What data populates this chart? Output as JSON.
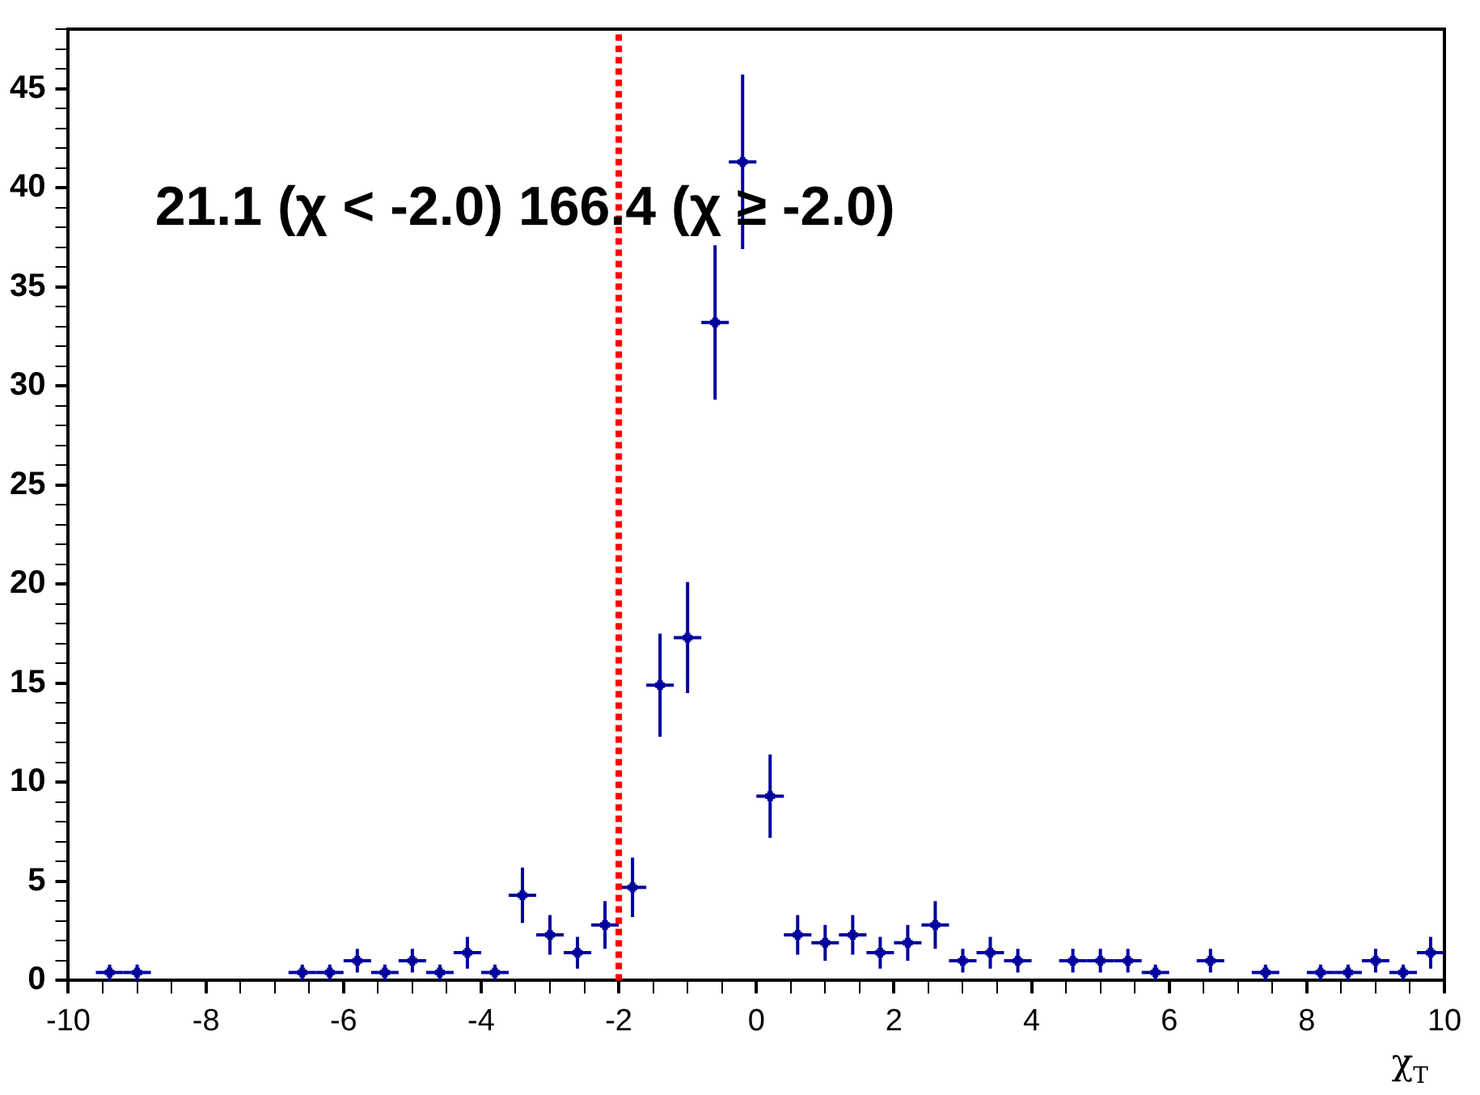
{
  "chart_data": {
    "type": "scatter",
    "xlabel": "χ$_{T}$",
    "marker": "cross",
    "annotations": [
      "21.1 (χ < -2.0) 166.4 (χ ≥ -2.0)"
    ],
    "xlim": [
      -10,
      10
    ],
    "xticks": [
      -10,
      {
        "value": -9.5,
        "label": null
      },
      {
        "value": -9,
        "label": null
      },
      {
        "value": -8.5,
        "label": null
      },
      -8,
      {
        "value": -7.5,
        "label": null
      },
      {
        "value": -7,
        "label": null
      },
      {
        "value": -6.5,
        "label": null
      },
      -6,
      {
        "value": -5.5,
        "label": null
      },
      {
        "value": -5,
        "label": null
      },
      {
        "value": -4.5,
        "label": null
      },
      -4,
      {
        "value": -3.5,
        "label": null
      },
      {
        "value": -3,
        "label": null
      },
      {
        "value": -2.5,
        "label": null
      },
      -2,
      {
        "value": -1.5,
        "label": null
      },
      {
        "value": -1,
        "label": null
      },
      {
        "value": -0.5,
        "label": null
      },
      0,
      {
        "value": 0.5,
        "label": null
      },
      {
        "value": 1,
        "label": null
      },
      {
        "value": 1.5,
        "label": null
      },
      2,
      {
        "value": 2.5,
        "label": null
      },
      {
        "value": 3,
        "label": null
      },
      {
        "value": 3.5,
        "label": null
      },
      4,
      {
        "value": 4.5,
        "label": null
      },
      {
        "value": 5,
        "label": null
      },
      {
        "value": 5.5,
        "label": null
      },
      6,
      {
        "value": 6.5,
        "label": null
      },
      {
        "value": 7,
        "label": null
      },
      {
        "value": 7.5,
        "label": null
      },
      8,
      {
        "value": 8.5,
        "label": null
      },
      {
        "value": 9,
        "label": null
      },
      {
        "value": 9.5,
        "label": null
      },
      10
    ],
    "ylim": [
      0,
      48
    ],
    "yticks": [
      0,
      {
        "value": 1,
        "label": null
      },
      {
        "value": 2,
        "label": null
      },
      {
        "value": 3,
        "label": null
      },
      {
        "value": 4,
        "label": null
      },
      5,
      {
        "value": 6,
        "label": null
      },
      {
        "value": 7,
        "label": null
      },
      {
        "value": 8,
        "label": null
      },
      {
        "value": 9,
        "label": null
      },
      10,
      {
        "value": 11,
        "label": null
      },
      {
        "value": 12,
        "label": null
      },
      {
        "value": 13,
        "label": null
      },
      {
        "value": 14,
        "label": null
      },
      15,
      {
        "value": 16,
        "label": null
      },
      {
        "value": 17,
        "label": null
      },
      {
        "value": 18,
        "label": null
      },
      {
        "value": 19,
        "label": null
      },
      20,
      {
        "value": 21,
        "label": null
      },
      {
        "value": 22,
        "label": null
      },
      {
        "value": 23,
        "label": null
      },
      {
        "value": 24,
        "label": null
      },
      25,
      {
        "value": 26,
        "label": null
      },
      {
        "value": 27,
        "label": null
      },
      {
        "value": 28,
        "label": null
      },
      {
        "value": 29,
        "label": null
      },
      30,
      {
        "value": 31,
        "label": null
      },
      {
        "value": 32,
        "label": null
      },
      {
        "value": 33,
        "label": null
      },
      {
        "value": 34,
        "label": null
      },
      35,
      {
        "value": 36,
        "label": null
      },
      {
        "value": 37,
        "label": null
      },
      {
        "value": 38,
        "label": null
      },
      {
        "value": 39,
        "label": null
      },
      40,
      {
        "value": 41,
        "label": null
      },
      {
        "value": 42,
        "label": null
      },
      {
        "value": 43,
        "label": null
      },
      {
        "value": 44,
        "label": null
      },
      45,
      {
        "value": 46,
        "label": null
      },
      {
        "value": 47,
        "label": null
      },
      {
        "value": 48,
        "label": null
      }
    ],
    "ref_lines": [
      {
        "axis": "x",
        "value": -2,
        "color": "#ff0000",
        "line_style": "dotted"
      }
    ],
    "series": [
      {
        "color": "#00009c",
        "x": [
          -9.4,
          -9.0,
          -6.6,
          -6.2,
          -5.8,
          -5.4,
          -5.0,
          -4.6,
          -4.2,
          -3.8,
          -3.4,
          -3.0,
          -2.6,
          -2.2,
          -1.8,
          -1.4,
          -1.0,
          -0.6,
          -0.2,
          0.2,
          0.6,
          1.0,
          1.4,
          1.8,
          2.2,
          2.6,
          3.0,
          3.4,
          3.8,
          4.6,
          5.0,
          5.4,
          5.8,
          6.6,
          7.4,
          8.2,
          8.6,
          9.0,
          9.4,
          9.8
        ],
        "values": [
          0.4,
          0.4,
          0.4,
          0.4,
          1.0,
          0.4,
          1.0,
          0.4,
          1.4,
          0.4,
          4.3,
          2.3,
          1.4,
          2.8,
          4.7,
          14.9,
          17.3,
          33.2,
          41.3,
          9.3,
          2.3,
          1.9,
          2.3,
          1.4,
          1.9,
          2.8,
          1.0,
          1.4,
          1.0,
          1.0,
          1.0,
          1.0,
          0.4,
          1.0,
          0.4,
          0.4,
          0.4,
          1.0,
          0.4,
          1.4
        ],
        "errors": [
          0.4,
          0.4,
          0.4,
          0.4,
          0.6,
          0.4,
          0.6,
          0.4,
          0.8,
          0.4,
          1.4,
          1.0,
          0.8,
          1.2,
          1.5,
          2.6,
          2.8,
          3.9,
          4.4,
          2.1,
          1.0,
          0.9,
          1.0,
          0.8,
          0.9,
          1.2,
          0.6,
          0.8,
          0.6,
          0.6,
          0.6,
          0.6,
          0.4,
          0.6,
          0.4,
          0.4,
          0.4,
          0.6,
          0.4,
          0.8
        ],
        "xerrors": [
          0.2,
          0.2,
          0.2,
          0.2,
          0.2,
          0.2,
          0.2,
          0.2,
          0.2,
          0.2,
          0.2,
          0.2,
          0.2,
          0.2,
          0.2,
          0.2,
          0.2,
          0.2,
          0.2,
          0.2,
          0.2,
          0.2,
          0.2,
          0.2,
          0.2,
          0.2,
          0.2,
          0.2,
          0.2,
          0.2,
          0.2,
          0.2,
          0.2,
          0.2,
          0.2,
          0.2,
          0.2,
          0.2,
          0.2,
          0.2
        ]
      }
    ]
  }
}
